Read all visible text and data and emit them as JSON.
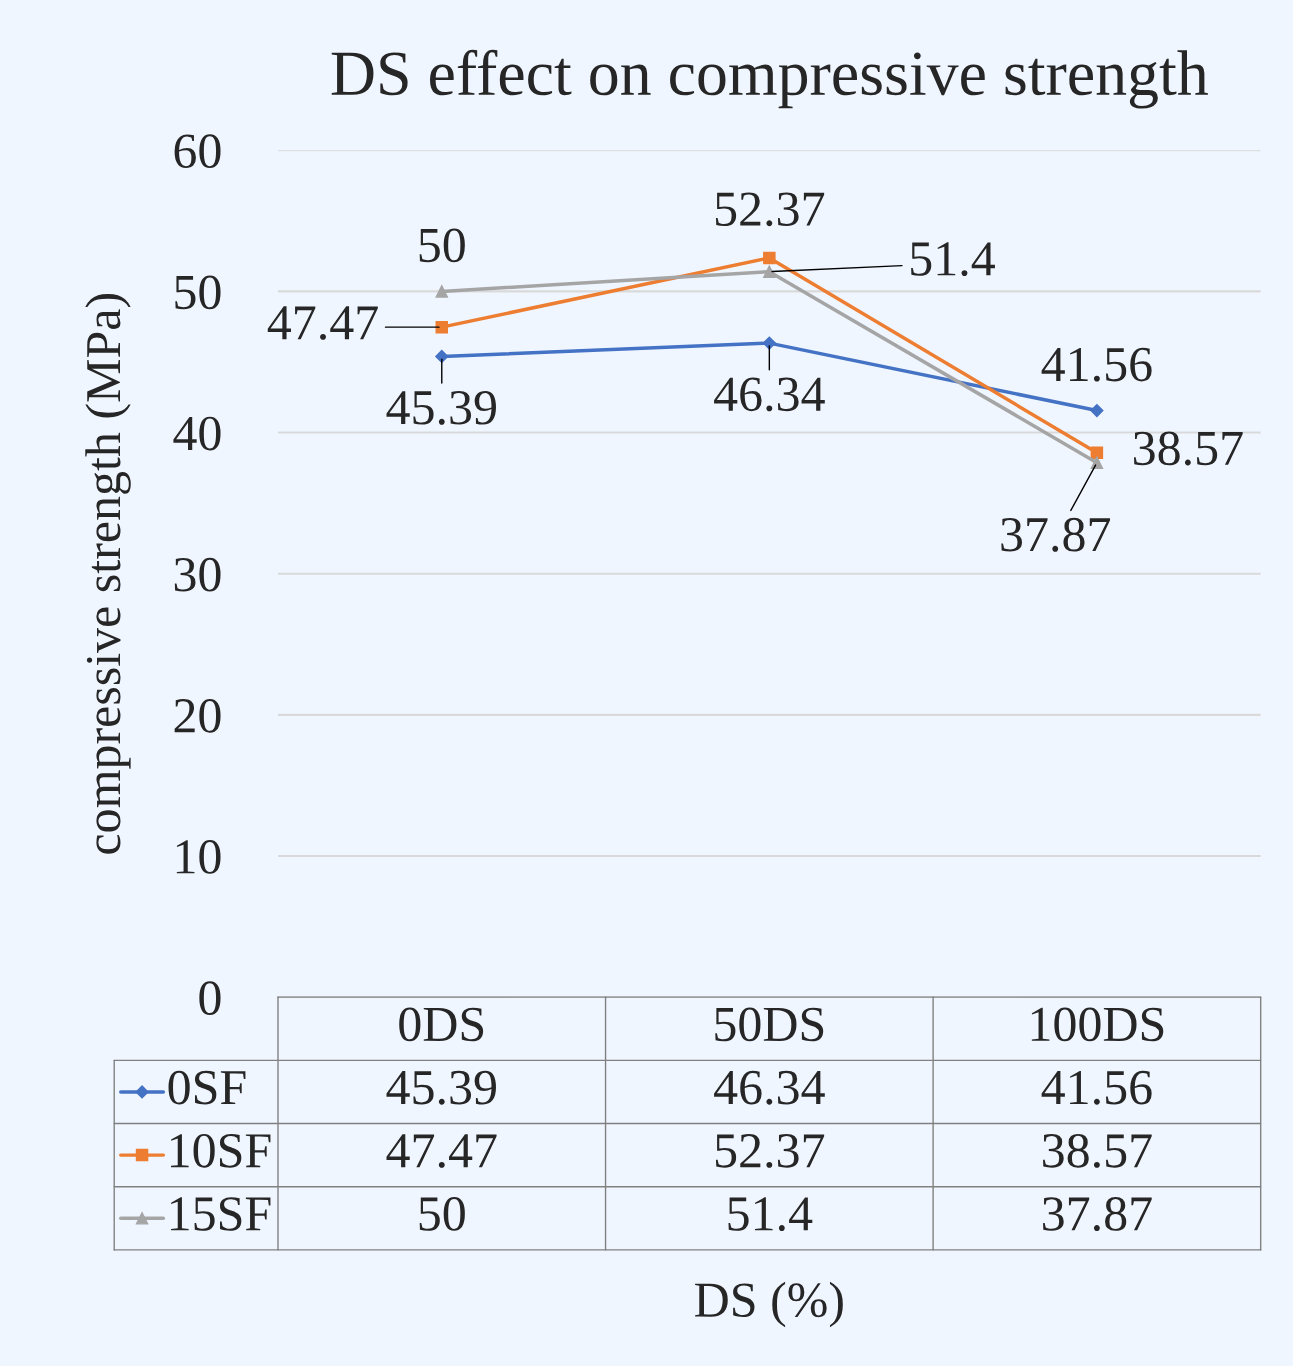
{
  "chart_data": {
    "type": "line",
    "title": "DS effect on compressive strength",
    "ylabel": "compressive strength (MPa)",
    "categories": [
      "0DS",
      "50DS",
      "100DS"
    ],
    "series": [
      {
        "name": "0SF",
        "color": "#4472c4",
        "marker": "diamond",
        "values": [
          45.39,
          46.34,
          41.56
        ]
      },
      {
        "name": "10SF",
        "color": "#ed7d31",
        "marker": "square",
        "values": [
          47.47,
          52.37,
          38.57
        ]
      },
      {
        "name": "15SF",
        "color": "#a5a5a5",
        "marker": "triangle",
        "values": [
          50,
          51.4,
          37.87
        ]
      }
    ],
    "annotations": [
      {
        "text": "45.39",
        "x": "0DS",
        "y": 45.39
      },
      {
        "text": "46.34",
        "x": "50DS",
        "y": 46.34
      },
      {
        "text": "41.56",
        "x": "100DS",
        "y": 41.56
      },
      {
        "text": "47.47",
        "x": "0DS",
        "y": 47.47
      },
      {
        "text": "52.37",
        "x": "50DS",
        "y": 52.37
      },
      {
        "text": "38.57",
        "x": "100DS",
        "y": 38.57
      },
      {
        "text": "50",
        "x": "0DS",
        "y": 50
      },
      {
        "text": "51.4",
        "x": "50DS",
        "y": 51.4
      },
      {
        "text": "37.87",
        "x": "100DS",
        "y": 37.87
      },
      "DS (%)"
    ],
    "ylim": [
      0,
      60
    ],
    "yticks": [
      0,
      10,
      20,
      30,
      40,
      50,
      60
    ],
    "grid": "y",
    "legend": "bottom",
    "data_labels": true
  }
}
